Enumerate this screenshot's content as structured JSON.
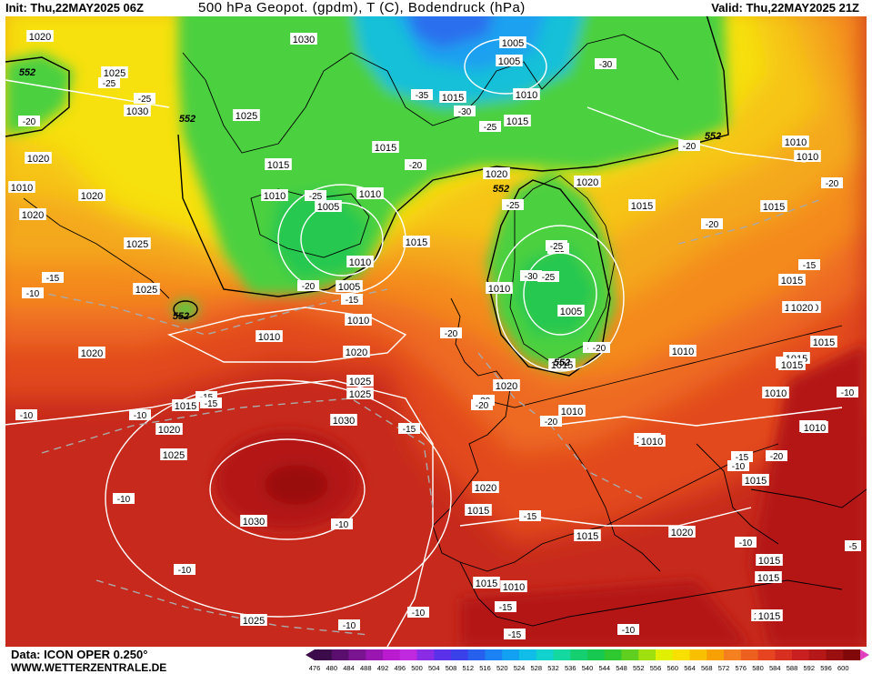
{
  "header": {
    "init": "Init: Thu,22MAY2025 06Z",
    "title": "500 hPa Geopot. (gpdm), T (C), Bodendruck (hPa)",
    "valid": "Valid: Thu,22MAY2025 21Z"
  },
  "footer": {
    "data_source": "Data: ICON OPER 0.250°",
    "website": "WWW.WETTERZENTRALE.DE"
  },
  "colorbar": {
    "labels": [
      "476",
      "480",
      "484",
      "488",
      "492",
      "496",
      "500",
      "504",
      "508",
      "512",
      "516",
      "520",
      "524",
      "528",
      "532",
      "536",
      "540",
      "544",
      "548",
      "552",
      "556",
      "560",
      "564",
      "568",
      "572",
      "576",
      "580",
      "584",
      "588",
      "592",
      "596",
      "600"
    ],
    "colors": [
      "#3c0b4a",
      "#5a0f6e",
      "#7a1490",
      "#9a16b0",
      "#b91ccf",
      "#c02adf",
      "#8a2be6",
      "#5a30e8",
      "#3a40ea",
      "#2860ee",
      "#1a82f2",
      "#12a0f0",
      "#10bde8",
      "#12d2d0",
      "#14d8a0",
      "#16d070",
      "#18c850",
      "#30c830",
      "#60d020",
      "#a0e010",
      "#e0f000",
      "#f8e000",
      "#f8c000",
      "#f8a000",
      "#f48020",
      "#ee6020",
      "#e64420",
      "#d83020",
      "#c82020",
      "#b41818",
      "#9a1010",
      "#800808"
    ],
    "legend_arrow_left_color": "#3c0b4a",
    "legend_arrow_right_color": "#e040c0"
  },
  "map": {
    "gpdm_552_labels": [
      "552",
      "552",
      "552",
      "552",
      "552",
      "552"
    ],
    "pressure_labels": [
      {
        "text": "1020"
      },
      {
        "text": "1030"
      },
      {
        "text": "1025"
      },
      {
        "text": "1030"
      },
      {
        "text": "1025"
      },
      {
        "text": "1020"
      },
      {
        "text": "1010"
      },
      {
        "text": "1020"
      },
      {
        "text": "1025"
      },
      {
        "text": "1025"
      },
      {
        "text": "1020"
      },
      {
        "text": "1015"
      },
      {
        "text": "1020"
      },
      {
        "text": "1025"
      },
      {
        "text": "1030"
      },
      {
        "text": "1030"
      },
      {
        "text": "1025"
      },
      {
        "text": "1010"
      },
      {
        "text": "1010"
      },
      {
        "text": "1015"
      },
      {
        "text": "1005"
      },
      {
        "text": "1015"
      },
      {
        "text": "1015"
      },
      {
        "text": "1010"
      },
      {
        "text": "1015"
      },
      {
        "text": "1005"
      },
      {
        "text": "1020"
      },
      {
        "text": "1015"
      },
      {
        "text": "1010"
      },
      {
        "text": "1020"
      },
      {
        "text": "1020"
      },
      {
        "text": "1020"
      },
      {
        "text": "1010"
      },
      {
        "text": "1005"
      },
      {
        "text": "1015"
      },
      {
        "text": "1005"
      },
      {
        "text": "1010"
      },
      {
        "text": "1010"
      },
      {
        "text": "1020"
      },
      {
        "text": "1025"
      },
      {
        "text": "1020"
      },
      {
        "text": "1010"
      },
      {
        "text": "1015"
      },
      {
        "text": "1010"
      },
      {
        "text": "1010"
      },
      {
        "text": "1015"
      },
      {
        "text": "1015"
      },
      {
        "text": "1015"
      },
      {
        "text": "1010"
      },
      {
        "text": "1020"
      },
      {
        "text": "1015"
      },
      {
        "text": "1015"
      },
      {
        "text": "1010"
      },
      {
        "text": "1015"
      },
      {
        "text": "1015"
      },
      {
        "text": "1010"
      },
      {
        "text": "1015"
      },
      {
        "text": "1010"
      },
      {
        "text": "1015"
      },
      {
        "text": "1010"
      },
      {
        "text": "1015"
      },
      {
        "text": "1015"
      },
      {
        "text": "1015"
      },
      {
        "text": "1020"
      },
      {
        "text": "1015"
      },
      {
        "text": "1025"
      },
      {
        "text": "1005"
      },
      {
        "text": "1010"
      },
      {
        "text": "1010"
      },
      {
        "text": "1020"
      },
      {
        "text": "1015"
      },
      {
        "text": "1010"
      }
    ],
    "temp_labels": [
      {
        "text": "-25"
      },
      {
        "text": "-25"
      },
      {
        "text": "-20"
      },
      {
        "text": "-25"
      },
      {
        "text": "-20"
      },
      {
        "text": "-15"
      },
      {
        "text": "-10"
      },
      {
        "text": "-10"
      },
      {
        "text": "-15"
      },
      {
        "text": "-10"
      },
      {
        "text": "-10"
      },
      {
        "text": "-10"
      },
      {
        "text": "-10"
      },
      {
        "text": "-10"
      },
      {
        "text": "-15"
      },
      {
        "text": "-15"
      },
      {
        "text": "-20"
      },
      {
        "text": "-20"
      },
      {
        "text": "-25"
      },
      {
        "text": "-20"
      },
      {
        "text": "-15"
      },
      {
        "text": "-35"
      },
      {
        "text": "-30"
      },
      {
        "text": "-25"
      },
      {
        "text": "-20"
      },
      {
        "text": "-30"
      },
      {
        "text": "-25"
      },
      {
        "text": "-30"
      },
      {
        "text": "-25"
      },
      {
        "text": "-20"
      },
      {
        "text": "-20"
      },
      {
        "text": "-20"
      },
      {
        "text": "-20"
      },
      {
        "text": "-15"
      },
      {
        "text": "-15"
      },
      {
        "text": "-20"
      },
      {
        "text": "-15"
      },
      {
        "text": "-10"
      },
      {
        "text": "-10"
      },
      {
        "text": "-5"
      },
      {
        "text": "-10"
      },
      {
        "text": "-10"
      },
      {
        "text": "-15"
      },
      {
        "text": "-15"
      },
      {
        "text": "-20"
      },
      {
        "text": "-25"
      },
      {
        "text": "-20"
      },
      {
        "text": "-10"
      }
    ]
  }
}
